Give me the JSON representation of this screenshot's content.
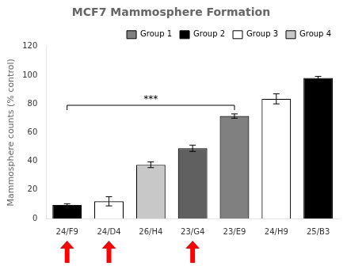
{
  "chart_data": {
    "type": "bar",
    "title": "MCF7 Mammosphere Formation",
    "ylabel": "Mammosphere counts (% control)",
    "categories": [
      "24/F9",
      "24/D4",
      "26/H4",
      "23/G4",
      "23/E9",
      "24/H9",
      "25/B3"
    ],
    "values": [
      9.5,
      12.0,
      37.5,
      49.0,
      71.5,
      83.5,
      98.0
    ],
    "errors": [
      0.8,
      3.2,
      2.0,
      2.2,
      1.5,
      3.5,
      1.2
    ],
    "colors": [
      "#000000",
      "#ffffff",
      "#c8c8c8",
      "#606060",
      "#808080",
      "#ffffff",
      "#000000"
    ],
    "edge_color": "#000000",
    "legend_items": [
      {
        "label": "Group 1",
        "color": "#808080"
      },
      {
        "label": "Group 2",
        "color": "#000000"
      },
      {
        "label": "Group 3",
        "color": "#ffffff"
      },
      {
        "label": "Group 4",
        "color": "#c8c8c8"
      }
    ],
    "legend": "upper right",
    "ylim": [
      0,
      120
    ],
    "yticks": [
      0,
      20,
      40,
      60,
      80,
      100,
      120
    ],
    "grid": false,
    "annotations": [
      {
        "text": "***",
        "x_start": "24/F9",
        "x_end": "23/E9",
        "y": 79
      }
    ],
    "arrows": [
      "24/F9",
      "24/D4",
      "23/G4"
    ],
    "arrow_color": "#ff0000"
  }
}
